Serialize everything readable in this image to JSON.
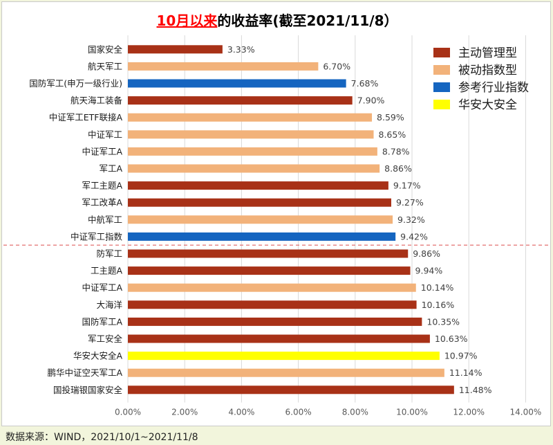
{
  "title": {
    "highlight": "10月以来",
    "rest": "的收益率(截至2021/11/8）",
    "highlight_color": "#ff0000"
  },
  "source": "数据来源：WIND，2021/10/1~2021/11/8",
  "colors": {
    "active": "#a83117",
    "passive": "#f2b27a",
    "reference": "#1565c0",
    "huaan": "#ffff00",
    "divider": "#e06060",
    "grid": "#d9d9d9"
  },
  "chart_data": {
    "type": "bar",
    "orientation": "horizontal",
    "xlim": [
      0,
      14
    ],
    "x_ticks": [
      "0.00%",
      "2.00%",
      "4.00%",
      "6.00%",
      "8.00%",
      "10.00%",
      "12.00%",
      "14.00%"
    ],
    "grid": true,
    "legend_position": "top-right",
    "legend": [
      {
        "key": "active",
        "label": "主动管理型"
      },
      {
        "key": "passive",
        "label": "被动指数型"
      },
      {
        "key": "reference",
        "label": "参考行业指数"
      },
      {
        "key": "huaan",
        "label": "华安大安全"
      }
    ],
    "divider_after_index": 11,
    "bars": [
      {
        "label": "国家安全",
        "value": 3.33,
        "value_label": "3.33%",
        "type": "active"
      },
      {
        "label": "航天军工",
        "value": 6.7,
        "value_label": "6.70%",
        "type": "passive"
      },
      {
        "label": "国防军工(申万一级行业)",
        "value": 7.68,
        "value_label": "7.68%",
        "type": "reference"
      },
      {
        "label": "航天海工装备",
        "value": 7.9,
        "value_label": "7.90%",
        "type": "active"
      },
      {
        "label": "中证军工ETF联接A",
        "value": 8.59,
        "value_label": "8.59%",
        "type": "passive"
      },
      {
        "label": "中证军工",
        "value": 8.65,
        "value_label": "8.65%",
        "type": "passive"
      },
      {
        "label": "中证军工A",
        "value": 8.78,
        "value_label": "8.78%",
        "type": "passive"
      },
      {
        "label": "军工A",
        "value": 8.86,
        "value_label": "8.86%",
        "type": "passive"
      },
      {
        "label": "军工主题A",
        "value": 9.17,
        "value_label": "9.17%",
        "type": "active"
      },
      {
        "label": "军工改革A",
        "value": 9.27,
        "value_label": "9.27%",
        "type": "active"
      },
      {
        "label": "中航军工",
        "value": 9.32,
        "value_label": "9.32%",
        "type": "passive"
      },
      {
        "label": "中证军工指数",
        "value": 9.42,
        "value_label": "9.42%",
        "type": "reference"
      },
      {
        "label": "防军工",
        "value": 9.86,
        "value_label": "9.86%",
        "type": "active"
      },
      {
        "label": "工主题A",
        "value": 9.94,
        "value_label": "9.94%",
        "type": "active"
      },
      {
        "label": "中证军工A",
        "value": 10.14,
        "value_label": "10.14%",
        "type": "passive"
      },
      {
        "label": "大海洋",
        "value": 10.16,
        "value_label": "10.16%",
        "type": "active"
      },
      {
        "label": "国防军工A",
        "value": 10.35,
        "value_label": "10.35%",
        "type": "active"
      },
      {
        "label": "军工安全",
        "value": 10.63,
        "value_label": "10.63%",
        "type": "active"
      },
      {
        "label": "华安大安全A",
        "value": 10.97,
        "value_label": "10.97%",
        "type": "huaan"
      },
      {
        "label": "鹏华中证空天军工A",
        "value": 11.14,
        "value_label": "11.14%",
        "type": "passive"
      },
      {
        "label": "国投瑞银国家安全",
        "value": 11.48,
        "value_label": "11.48%",
        "type": "active"
      }
    ]
  }
}
